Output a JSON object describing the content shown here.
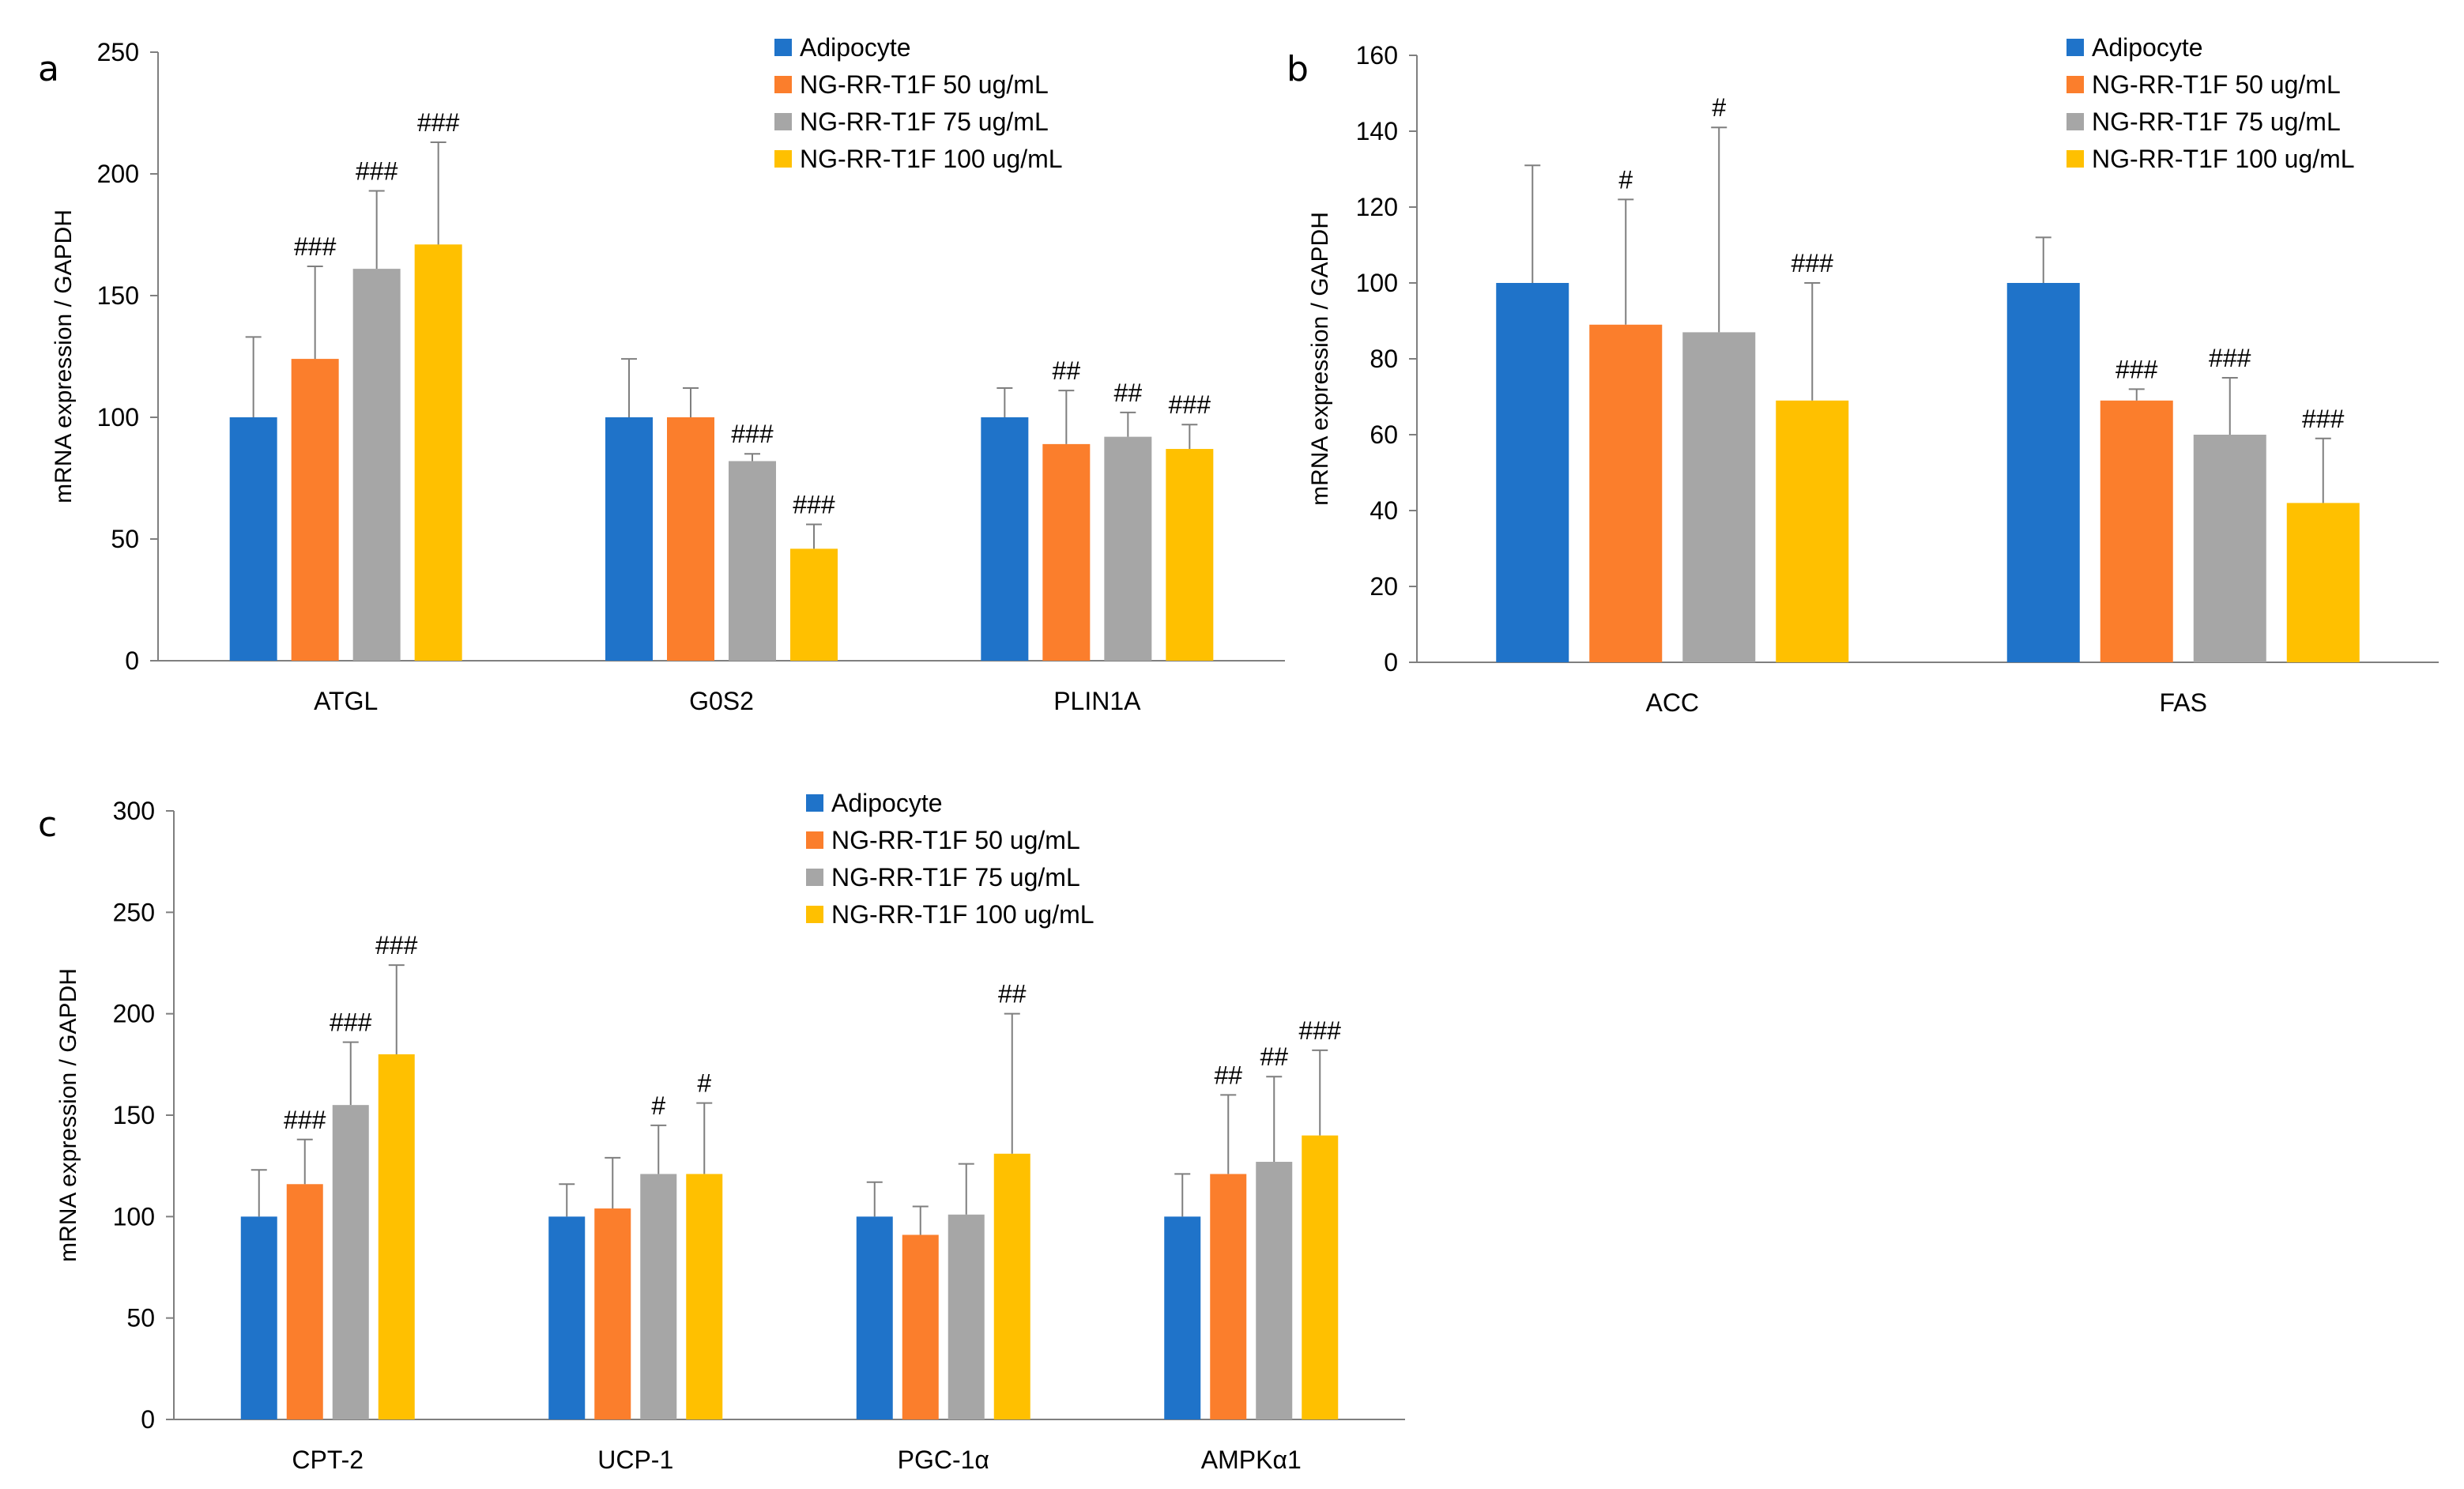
{
  "colors": {
    "adipocyte": "#1f73c9",
    "ng50": "#fb7e2c",
    "ng75": "#a6a6a6",
    "ng100": "#ffc000",
    "axis": "#7f7f7f",
    "error": "#7f7f7f"
  },
  "legend": [
    "Adipocyte",
    "NG-RR-T1F 50 ug/mL",
    "NG-RR-T1F 75 ug/mL",
    "NG-RR-T1F 100 ug/mL"
  ],
  "chart_data": [
    {
      "panel": "a",
      "type": "bar",
      "ylabel": "mRNA expression / GAPDH",
      "ylim": [
        0,
        250
      ],
      "yticks": [
        0,
        50,
        100,
        150,
        200,
        250
      ],
      "categories": [
        "ATGL",
        "G0S2",
        "PLIN1A"
      ],
      "series": [
        {
          "name": "Adipocyte",
          "values": [
            100,
            100,
            100
          ],
          "errors": [
            33,
            24,
            12
          ],
          "sig": [
            "",
            "",
            ""
          ]
        },
        {
          "name": "NG-RR-T1F 50 ug/mL",
          "values": [
            124,
            100,
            89
          ],
          "errors": [
            38,
            12,
            22
          ],
          "sig": [
            "###",
            "",
            "##"
          ]
        },
        {
          "name": "NG-RR-T1F 75 ug/mL",
          "values": [
            161,
            82,
            92
          ],
          "errors": [
            32,
            3,
            10
          ],
          "sig": [
            "###",
            "###",
            "##"
          ]
        },
        {
          "name": "NG-RR-T1F 100 ug/mL",
          "values": [
            171,
            46,
            87
          ],
          "errors": [
            42,
            10,
            10
          ],
          "sig": [
            "###",
            "###",
            "###"
          ]
        }
      ]
    },
    {
      "panel": "b",
      "type": "bar",
      "ylabel": "mRNA expression / GAPDH",
      "ylim": [
        0,
        160
      ],
      "yticks": [
        0,
        20,
        40,
        60,
        80,
        100,
        120,
        140,
        160
      ],
      "categories": [
        "ACC",
        "FAS"
      ],
      "series": [
        {
          "name": "Adipocyte",
          "values": [
            100,
            100
          ],
          "errors": [
            31,
            12
          ],
          "sig": [
            "",
            ""
          ]
        },
        {
          "name": "NG-RR-T1F 50 ug/mL",
          "values": [
            89,
            69
          ],
          "errors": [
            33,
            3
          ],
          "sig": [
            "#",
            "###"
          ]
        },
        {
          "name": "NG-RR-T1F 75 ug/mL",
          "values": [
            87,
            60
          ],
          "errors": [
            54,
            15
          ],
          "sig": [
            "#",
            "###"
          ]
        },
        {
          "name": "NG-RR-T1F 100 ug/mL",
          "values": [
            69,
            42
          ],
          "errors": [
            31,
            17
          ],
          "sig": [
            "###",
            "###"
          ]
        }
      ]
    },
    {
      "panel": "c",
      "type": "bar",
      "ylabel": "mRNA expression / GAPDH",
      "ylim": [
        0,
        300
      ],
      "yticks": [
        0,
        50,
        100,
        150,
        200,
        250,
        300
      ],
      "categories": [
        "CPT-2",
        "UCP-1",
        "PGC-1α",
        "AMPKα1"
      ],
      "series": [
        {
          "name": "Adipocyte",
          "values": [
            100,
            100,
            100,
            100
          ],
          "errors": [
            23,
            16,
            17,
            21
          ],
          "sig": [
            "",
            "",
            "",
            ""
          ]
        },
        {
          "name": "NG-RR-T1F 50 ug/mL",
          "values": [
            116,
            104,
            91,
            121
          ],
          "errors": [
            22,
            25,
            14,
            39
          ],
          "sig": [
            "###",
            "",
            "",
            "##"
          ]
        },
        {
          "name": "NG-RR-T1F 75 ug/mL",
          "values": [
            155,
            121,
            101,
            127
          ],
          "errors": [
            31,
            24,
            25,
            42
          ],
          "sig": [
            "###",
            "#",
            "",
            "##"
          ]
        },
        {
          "name": "NG-RR-T1F 100 ug/mL",
          "values": [
            180,
            121,
            131,
            140
          ],
          "errors": [
            44,
            35,
            69,
            42
          ],
          "sig": [
            "###",
            "#",
            "##",
            "###"
          ]
        }
      ]
    }
  ]
}
